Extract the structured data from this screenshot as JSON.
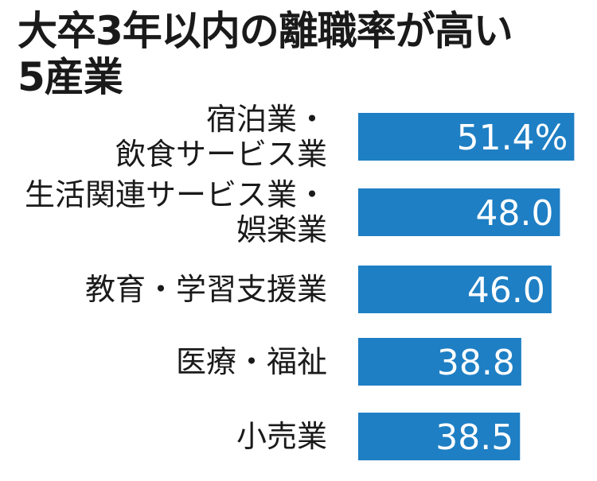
{
  "chart_data": {
    "type": "bar",
    "orientation": "horizontal",
    "title_lines": [
      "大卒3年以内の離職率が高い",
      "5産業"
    ],
    "unit": "%",
    "xlabel": "",
    "ylabel": "",
    "categories": [
      [
        "宿泊業・",
        "飲食サービス業"
      ],
      [
        "生活関連サービス業・",
        "娯楽業"
      ],
      [
        "教育・学習支援業"
      ],
      [
        "医療・福祉"
      ],
      [
        "小売業"
      ]
    ],
    "values": [
      51.4,
      48.0,
      46.0,
      38.8,
      38.5
    ],
    "value_labels": [
      "51.4%",
      "48.0",
      "46.0",
      "38.8",
      "38.5"
    ],
    "bar_color": "#1e7fc4",
    "label_color": "#ffffff",
    "grid": false,
    "legend": "none"
  }
}
